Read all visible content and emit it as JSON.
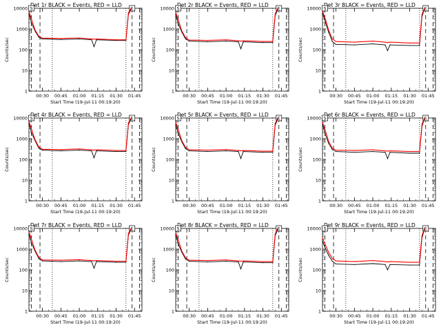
{
  "shared": {
    "ylabel": "Counts/sec",
    "xlabel": "Start Time (19-Jul-11 00:19:20)",
    "y_ticks": [
      "1",
      "10",
      "100",
      "1000",
      "10000"
    ],
    "x_ticks_a": [
      "00:30",
      "00:45",
      "01:00",
      "01:15",
      "01:30",
      "01:45"
    ],
    "x_ticks_b": [
      "00:30",
      "00:45",
      "01:00",
      "01:15",
      "01:30",
      "01:45"
    ],
    "marker_S": "S",
    "marker_E": "E",
    "colors": {
      "events": "#000000",
      "lld": "#ff0000"
    }
  },
  "chart_data": [
    {
      "type": "line",
      "title": "Det 1r BLACK = Events, RED = LLD",
      "ylim": [
        1,
        10000
      ],
      "yscale": "log",
      "x": [
        "00:19",
        "00:21",
        "00:24",
        "00:27",
        "00:30",
        "00:45",
        "01:00",
        "01:10",
        "01:12",
        "01:14",
        "01:30",
        "01:38",
        "01:40",
        "01:42"
      ],
      "series": [
        {
          "name": "Events",
          "values": [
            5500,
            2000,
            800,
            400,
            330,
            310,
            330,
            300,
            140,
            300,
            280,
            280,
            5000,
            9000
          ]
        },
        {
          "name": "LLD",
          "values": [
            6500,
            3000,
            900,
            450,
            360,
            350,
            370,
            330,
            320,
            330,
            300,
            300,
            6000,
            9800
          ]
        }
      ]
    },
    {
      "type": "line",
      "title": "Det 2r BLACK = Events, RED = LLD",
      "ylim": [
        1,
        10000
      ],
      "yscale": "log",
      "x": [
        "00:19",
        "00:21",
        "00:24",
        "00:27",
        "00:30",
        "00:45",
        "01:00",
        "01:10",
        "01:12",
        "01:14",
        "01:30",
        "01:38",
        "01:40",
        "01:42"
      ],
      "series": [
        {
          "name": "Events",
          "values": [
            5000,
            1800,
            700,
            330,
            260,
            240,
            260,
            240,
            110,
            240,
            220,
            220,
            4500,
            9000
          ]
        },
        {
          "name": "LLD",
          "values": [
            6000,
            2800,
            800,
            380,
            290,
            280,
            300,
            270,
            260,
            270,
            250,
            250,
            5500,
            9800
          ]
        }
      ]
    },
    {
      "type": "line",
      "title": "Det 3r BLACK = Events, RED = LLD",
      "ylim": [
        1,
        10000
      ],
      "yscale": "log",
      "x": [
        "00:19",
        "00:21",
        "00:24",
        "00:27",
        "00:30",
        "00:45",
        "01:00",
        "01:10",
        "01:12",
        "01:14",
        "01:30",
        "01:38",
        "01:40",
        "01:42"
      ],
      "series": [
        {
          "name": "Events",
          "values": [
            6000,
            2500,
            700,
            250,
            180,
            170,
            190,
            170,
            90,
            170,
            160,
            160,
            4000,
            9000
          ]
        },
        {
          "name": "LLD",
          "values": [
            7000,
            3500,
            900,
            330,
            250,
            230,
            260,
            230,
            220,
            230,
            210,
            210,
            5000,
            9800
          ]
        }
      ]
    },
    {
      "type": "line",
      "title": "Det 4r BLACK = Events, RED = LLD",
      "ylim": [
        1,
        10000
      ],
      "yscale": "log",
      "x": [
        "00:19",
        "00:21",
        "00:24",
        "00:27",
        "00:30",
        "00:45",
        "01:00",
        "01:10",
        "01:12",
        "01:14",
        "01:30",
        "01:38",
        "01:40",
        "01:42"
      ],
      "series": [
        {
          "name": "Events",
          "values": [
            5500,
            2000,
            800,
            350,
            280,
            260,
            280,
            260,
            120,
            260,
            240,
            240,
            4800,
            9000
          ]
        },
        {
          "name": "LLD",
          "values": [
            6500,
            3000,
            900,
            400,
            310,
            300,
            320,
            290,
            280,
            290,
            270,
            270,
            5800,
            9800
          ]
        }
      ]
    },
    {
      "type": "line",
      "title": "Det 5r BLACK = Events, RED = LLD",
      "ylim": [
        1,
        10000
      ],
      "yscale": "log",
      "x": [
        "00:19",
        "00:21",
        "00:24",
        "00:27",
        "00:30",
        "00:45",
        "01:00",
        "01:10",
        "01:12",
        "01:14",
        "01:30",
        "01:38",
        "01:40",
        "01:42"
      ],
      "series": [
        {
          "name": "Events",
          "values": [
            5000,
            1800,
            700,
            330,
            260,
            240,
            260,
            240,
            110,
            240,
            220,
            220,
            4500,
            9000
          ]
        },
        {
          "name": "LLD",
          "values": [
            6000,
            2800,
            800,
            380,
            290,
            280,
            300,
            270,
            260,
            270,
            250,
            250,
            5500,
            9800
          ]
        }
      ]
    },
    {
      "type": "line",
      "title": "Det 6r BLACK = Events, RED = LLD",
      "ylim": [
        1,
        10000
      ],
      "yscale": "log",
      "x": [
        "00:19",
        "00:21",
        "00:24",
        "00:27",
        "00:30",
        "00:45",
        "01:00",
        "01:10",
        "01:12",
        "01:14",
        "01:30",
        "01:38",
        "01:40",
        "01:42"
      ],
      "series": [
        {
          "name": "Events",
          "values": [
            5000,
            1800,
            600,
            300,
            240,
            220,
            240,
            220,
            110,
            220,
            200,
            200,
            4000,
            9000
          ]
        },
        {
          "name": "LLD",
          "values": [
            6000,
            2800,
            750,
            350,
            280,
            270,
            290,
            260,
            250,
            260,
            240,
            240,
            5000,
            9800
          ]
        }
      ]
    },
    {
      "type": "line",
      "title": "Det 7r BLACK = Events, RED = LLD",
      "ylim": [
        1,
        10000
      ],
      "yscale": "log",
      "x": [
        "00:19",
        "00:21",
        "00:24",
        "00:27",
        "00:30",
        "00:45",
        "01:00",
        "01:10",
        "01:12",
        "01:14",
        "01:30",
        "01:38",
        "01:40",
        "01:42"
      ],
      "series": [
        {
          "name": "Events",
          "values": [
            5500,
            2000,
            800,
            350,
            270,
            250,
            270,
            250,
            120,
            250,
            230,
            230,
            4800,
            9000
          ]
        },
        {
          "name": "LLD",
          "values": [
            6500,
            3000,
            900,
            400,
            300,
            290,
            310,
            280,
            270,
            280,
            260,
            260,
            5800,
            9800
          ]
        }
      ]
    },
    {
      "type": "line",
      "title": "Det 8r BLACK = Events, RED = LLD",
      "ylim": [
        1,
        10000
      ],
      "yscale": "log",
      "x": [
        "00:19",
        "00:21",
        "00:24",
        "00:27",
        "00:30",
        "00:45",
        "01:00",
        "01:10",
        "01:12",
        "01:14",
        "01:30",
        "01:38",
        "01:40",
        "01:42"
      ],
      "series": [
        {
          "name": "Events",
          "values": [
            5000,
            1800,
            700,
            330,
            260,
            240,
            260,
            240,
            110,
            240,
            220,
            220,
            4500,
            9000
          ]
        },
        {
          "name": "LLD",
          "values": [
            6000,
            2800,
            800,
            380,
            290,
            280,
            300,
            270,
            260,
            270,
            250,
            250,
            5500,
            9800
          ]
        }
      ]
    },
    {
      "type": "line",
      "title": "Det 9r BLACK = Events, RED = LLD",
      "ylim": [
        1,
        10000
      ],
      "yscale": "log",
      "x": [
        "00:19",
        "00:21",
        "00:24",
        "00:27",
        "00:30",
        "00:45",
        "01:00",
        "01:10",
        "01:12",
        "01:14",
        "01:30",
        "01:38",
        "01:40",
        "01:42"
      ],
      "series": [
        {
          "name": "Events",
          "values": [
            2500,
            1200,
            500,
            260,
            190,
            180,
            200,
            180,
            100,
            180,
            170,
            170,
            3500,
            9000
          ]
        },
        {
          "name": "LLD",
          "values": [
            3500,
            1800,
            700,
            350,
            270,
            250,
            280,
            250,
            240,
            250,
            230,
            230,
            4500,
            9800
          ]
        }
      ]
    }
  ]
}
